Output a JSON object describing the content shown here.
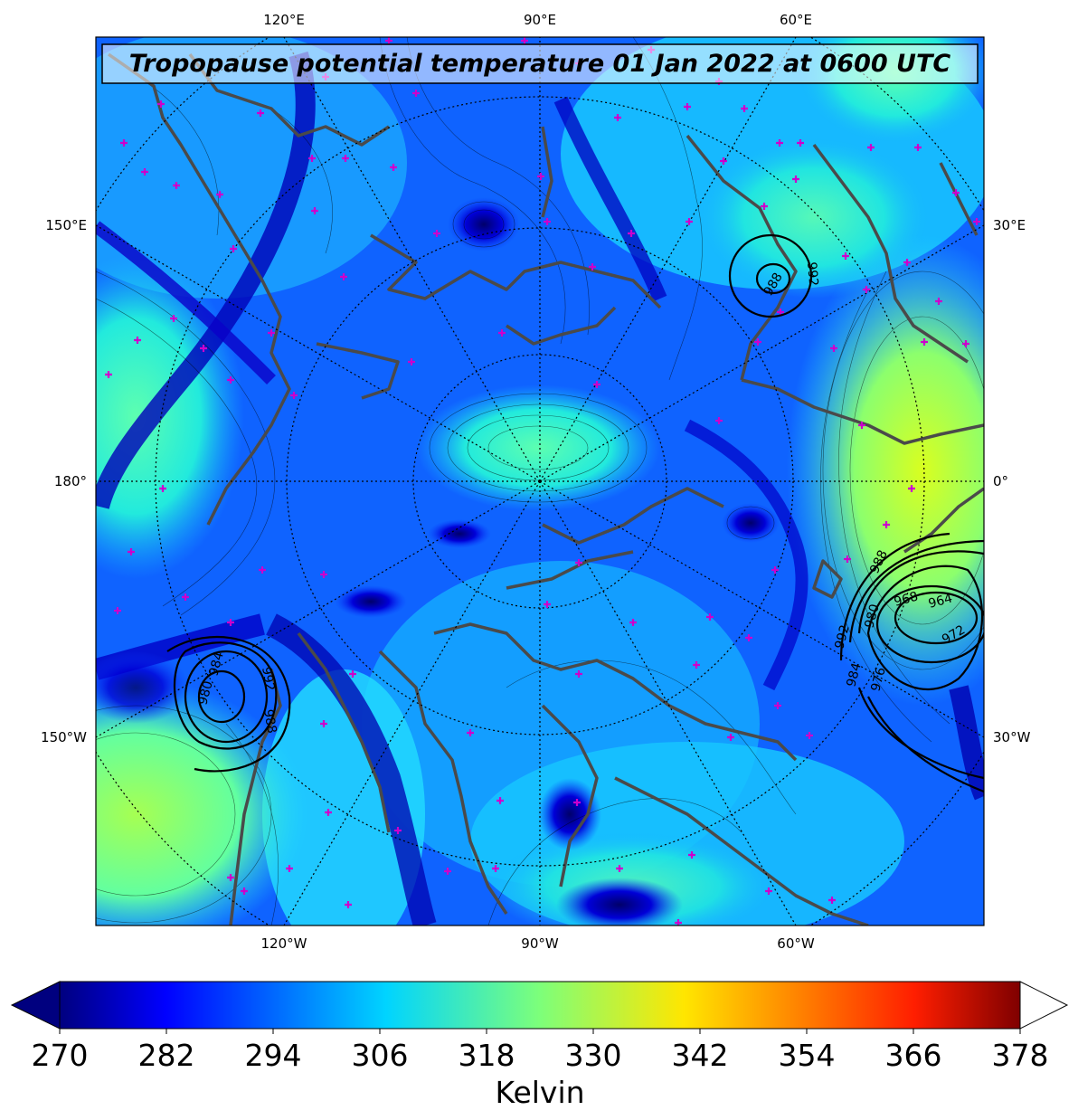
{
  "title": "Tropopause potential temperature 01 Jan 2022 at 0600 UTC",
  "map": {
    "projection": "north polar stereographic",
    "top_labels": [
      "120°E",
      "90°E",
      "60°E"
    ],
    "bottom_labels": [
      "120°W",
      "90°W",
      "60°W"
    ],
    "left_labels": [
      "150°E",
      "180°",
      "150°W"
    ],
    "right_labels": [
      "30°E",
      "0°",
      "30°W"
    ],
    "coastline_color": "#4a4a4a",
    "marker_color": "#cc00cc",
    "isobars": {
      "color": "#000000",
      "labels_left": [
        "980",
        "984",
        "988",
        "992"
      ],
      "labels_right": [
        "964",
        "968",
        "972",
        "976",
        "980",
        "984",
        "988",
        "992"
      ],
      "labels_top": [
        "992",
        "988"
      ]
    }
  },
  "colorbar": {
    "label": "Kelvin",
    "min": 270,
    "max": 378,
    "ticks": [
      "270",
      "282",
      "294",
      "306",
      "318",
      "330",
      "342",
      "354",
      "366",
      "378"
    ],
    "colormap": "jet",
    "extend": "both"
  }
}
